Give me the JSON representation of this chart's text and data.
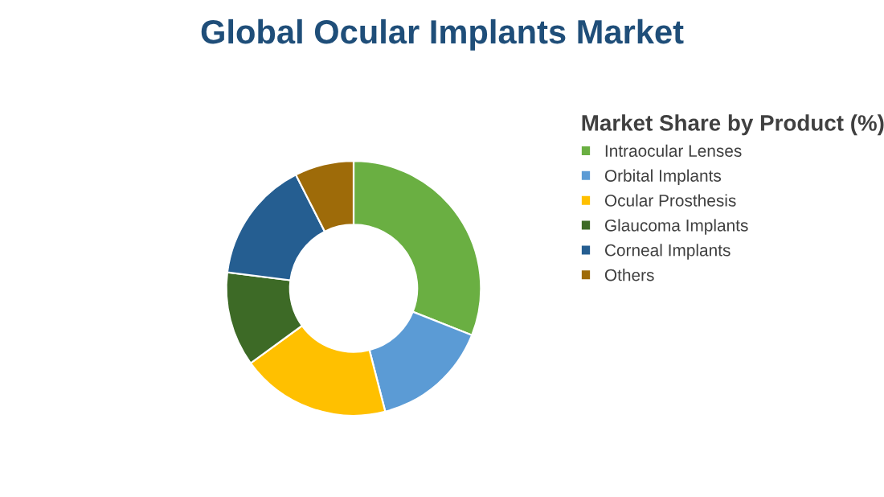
{
  "chart_data": {
    "type": "donut",
    "title": "Global Ocular Implants Market",
    "legend_title": "Market Share by Product (%)",
    "categories": [
      "Intraocular Lenses",
      "Orbital Implants",
      "Ocular Prosthesis",
      "Glaucoma Implants",
      "Corneal Implants",
      "Others"
    ],
    "values": [
      31,
      15,
      19,
      12,
      15.5,
      7.5
    ],
    "colors": [
      "#6aaf42",
      "#5b9bd5",
      "#ffc000",
      "#3d6a26",
      "#255e91",
      "#9e6b09"
    ],
    "legend": "right"
  }
}
